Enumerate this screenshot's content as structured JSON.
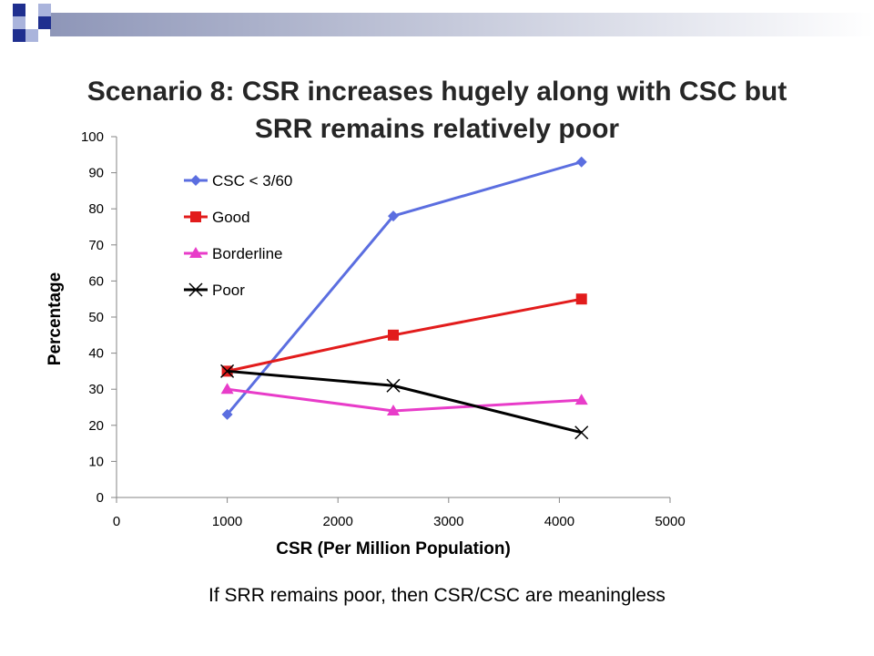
{
  "slide": {
    "caption": "If SRR remains poor, then CSR/CSC are meaningless",
    "accent_colors": {
      "square_dark": "#1f2f8f",
      "square_light": "#aab4dc",
      "bar_start": "#8e96b8",
      "bar_end": "#ffffff"
    }
  },
  "chart_data": {
    "type": "line",
    "title_lines": [
      "Scenario 8: CSR increases hugely along with CSC but",
      "SRR remains relatively poor"
    ],
    "xlabel": "CSR (Per Million Population)",
    "ylabel": "Percentage",
    "xlim": [
      0,
      5000
    ],
    "ylim": [
      0,
      100
    ],
    "xticks": [
      0,
      1000,
      2000,
      3000,
      4000,
      5000
    ],
    "yticks": [
      0,
      10,
      20,
      30,
      40,
      50,
      60,
      70,
      80,
      90,
      100
    ],
    "grid": false,
    "legend_position": "upper-left inside",
    "series": [
      {
        "name": "CSC < 3/60",
        "color": "#5b6ee0",
        "marker": "diamond",
        "x": [
          1000,
          2500,
          4200
        ],
        "y": [
          23,
          78,
          93
        ]
      },
      {
        "name": "Good",
        "color": "#e21c1c",
        "marker": "square",
        "x": [
          1000,
          2500,
          4200
        ],
        "y": [
          35,
          45,
          55
        ]
      },
      {
        "name": "Borderline",
        "color": "#e83cc9",
        "marker": "triangle",
        "x": [
          1000,
          2500,
          4200
        ],
        "y": [
          30,
          24,
          27
        ]
      },
      {
        "name": "Poor",
        "color": "#000000",
        "marker": "x",
        "x": [
          1000,
          2500,
          4200
        ],
        "y": [
          35,
          31,
          18
        ]
      }
    ]
  }
}
